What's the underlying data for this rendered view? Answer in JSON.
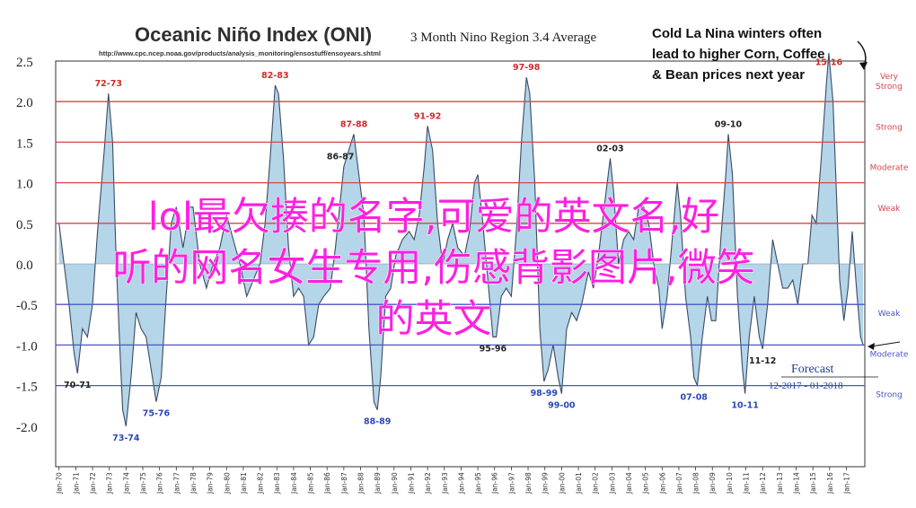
{
  "chart_data": {
    "type": "area",
    "title": "Oceanic Niño Index (ONI)",
    "subtitle": "3 Month Nino Region 3.4 Average",
    "source_url": "http://www.cpc.ncep.noaa.gov/products/analysis_monitoring/ensostuff/ensoyears.shtml",
    "xlabel": "",
    "ylabel": "",
    "ylim": [
      -2.5,
      2.5
    ],
    "y_tick_labels": [
      "2.5",
      "2.0",
      "1.5",
      "1.0",
      "0.5",
      "0.0",
      "-0.5",
      "-1.0",
      "-1.5",
      "-2.0"
    ],
    "y_ticks": [
      2.5,
      2.0,
      1.5,
      1.0,
      0.5,
      0.0,
      -0.5,
      -1.0,
      -1.5,
      -2.0
    ],
    "x_tick_labels": [
      "Jan-70",
      "Jan-71",
      "Jan-72",
      "Jan-73",
      "Jan-74",
      "Jan-75",
      "Jan-76",
      "Jan-77",
      "Jan-78",
      "Jan-79",
      "Jan-80",
      "Jan-81",
      "Jan-82",
      "Jan-83",
      "Jan-84",
      "Jan-85",
      "Jan-86",
      "Jan-87",
      "Jan-88",
      "Jan-89",
      "Jan-90",
      "Jan-91",
      "Jan-92",
      "Jan-93",
      "Jan-94",
      "Jan-95",
      "Jan-96",
      "Jan-97",
      "Jan-98",
      "Jan-99",
      "Jan-00",
      "Jan-01",
      "Jan-02",
      "Jan-03",
      "Jan-04",
      "Jan-05",
      "Jan-06",
      "Jan-07",
      "Jan-08",
      "Jan-09",
      "Jan-10",
      "Jan-11",
      "Jan-12",
      "Jan-13",
      "Jan-14",
      "Jan-15",
      "Jan-16",
      "Jan-17"
    ],
    "x_range": [
      1969.8,
      2018.1
    ],
    "thresholds": [
      {
        "label": "Very Strong",
        "value": 2.0,
        "color": "#d9434b"
      },
      {
        "label": "Strong",
        "value": 1.5,
        "color": "#d9434b"
      },
      {
        "label": "Moderate",
        "value": 1.0,
        "color": "#d9434b"
      },
      {
        "label": "Weak",
        "value": 0.5,
        "color": "#d9434b"
      },
      {
        "label": "Weak",
        "value": -0.5,
        "color": "#4a55c8"
      },
      {
        "label": "Moderate",
        "value": -1.0,
        "color": "#4a55c8"
      },
      {
        "label": "Strong",
        "value": -1.5,
        "color": "#4a55c8"
      }
    ],
    "series": [
      {
        "fill_color": "#b5d5e8",
        "line_color": "#3a4a66",
        "points": [
          [
            1970.0,
            0.5
          ],
          [
            1970.3,
            0.0
          ],
          [
            1970.6,
            -0.5
          ],
          [
            1970.9,
            -1.1
          ],
          [
            1971.1,
            -1.35
          ],
          [
            1971.4,
            -0.8
          ],
          [
            1971.7,
            -0.9
          ],
          [
            1972.0,
            -0.5
          ],
          [
            1972.3,
            0.4
          ],
          [
            1972.7,
            1.4
          ],
          [
            1972.95,
            2.1
          ],
          [
            1973.2,
            1.5
          ],
          [
            1973.4,
            0.1
          ],
          [
            1973.6,
            -0.9
          ],
          [
            1973.8,
            -1.8
          ],
          [
            1974.0,
            -2.0
          ],
          [
            1974.3,
            -1.4
          ],
          [
            1974.6,
            -0.6
          ],
          [
            1974.9,
            -0.8
          ],
          [
            1975.2,
            -0.9
          ],
          [
            1975.5,
            -1.3
          ],
          [
            1975.8,
            -1.7
          ],
          [
            1976.1,
            -1.4
          ],
          [
            1976.4,
            -0.4
          ],
          [
            1976.7,
            0.5
          ],
          [
            1977.0,
            0.7
          ],
          [
            1977.4,
            0.2
          ],
          [
            1977.8,
            0.7
          ],
          [
            1978.0,
            0.7
          ],
          [
            1978.4,
            0.0
          ],
          [
            1978.8,
            -0.3
          ],
          [
            1979.2,
            0.0
          ],
          [
            1979.6,
            0.2
          ],
          [
            1980.0,
            0.6
          ],
          [
            1980.4,
            0.3
          ],
          [
            1980.8,
            0.0
          ],
          [
            1981.2,
            -0.4
          ],
          [
            1981.6,
            -0.2
          ],
          [
            1982.0,
            0.0
          ],
          [
            1982.3,
            0.5
          ],
          [
            1982.6,
            1.3
          ],
          [
            1982.9,
            2.2
          ],
          [
            1983.1,
            2.1
          ],
          [
            1983.4,
            1.3
          ],
          [
            1983.7,
            0.2
          ],
          [
            1984.0,
            -0.4
          ],
          [
            1984.3,
            -0.3
          ],
          [
            1984.6,
            -0.4
          ],
          [
            1984.9,
            -1.0
          ],
          [
            1985.2,
            -0.9
          ],
          [
            1985.5,
            -0.5
          ],
          [
            1985.8,
            -0.4
          ],
          [
            1986.2,
            -0.3
          ],
          [
            1986.5,
            0.2
          ],
          [
            1986.8,
            0.8
          ],
          [
            1987.0,
            1.2
          ],
          [
            1987.3,
            1.4
          ],
          [
            1987.6,
            1.6
          ],
          [
            1987.9,
            1.1
          ],
          [
            1988.2,
            0.6
          ],
          [
            1988.5,
            -0.8
          ],
          [
            1988.8,
            -1.7
          ],
          [
            1989.0,
            -1.8
          ],
          [
            1989.2,
            -1.4
          ],
          [
            1989.5,
            -0.4
          ],
          [
            1989.8,
            -0.3
          ],
          [
            1990.1,
            0.1
          ],
          [
            1990.5,
            0.3
          ],
          [
            1990.9,
            0.4
          ],
          [
            1991.2,
            0.3
          ],
          [
            1991.5,
            0.6
          ],
          [
            1991.8,
            1.2
          ],
          [
            1992.0,
            1.7
          ],
          [
            1992.3,
            1.4
          ],
          [
            1992.6,
            0.5
          ],
          [
            1992.9,
            0.0
          ],
          [
            1993.2,
            0.3
          ],
          [
            1993.5,
            0.5
          ],
          [
            1993.8,
            0.2
          ],
          [
            1994.2,
            0.1
          ],
          [
            1994.5,
            0.4
          ],
          [
            1994.8,
            1.0
          ],
          [
            1995.0,
            1.1
          ],
          [
            1995.3,
            0.5
          ],
          [
            1995.6,
            -0.2
          ],
          [
            1995.9,
            -0.9
          ],
          [
            1996.1,
            -0.9
          ],
          [
            1996.4,
            -0.4
          ],
          [
            1996.7,
            -0.3
          ],
          [
            1997.0,
            -0.4
          ],
          [
            1997.3,
            0.4
          ],
          [
            1997.6,
            1.5
          ],
          [
            1997.9,
            2.3
          ],
          [
            1998.1,
            2.1
          ],
          [
            1998.4,
            1.0
          ],
          [
            1998.7,
            -0.8
          ],
          [
            1998.95,
            -1.45
          ],
          [
            1999.2,
            -1.3
          ],
          [
            1999.5,
            -1.0
          ],
          [
            1999.8,
            -1.4
          ],
          [
            2000.0,
            -1.6
          ],
          [
            2000.3,
            -0.8
          ],
          [
            2000.6,
            -0.6
          ],
          [
            2000.9,
            -0.7
          ],
          [
            2001.2,
            -0.5
          ],
          [
            2001.6,
            -0.1
          ],
          [
            2001.9,
            -0.3
          ],
          [
            2002.2,
            0.1
          ],
          [
            2002.6,
            0.8
          ],
          [
            2002.9,
            1.3
          ],
          [
            2003.1,
            0.9
          ],
          [
            2003.4,
            0.0
          ],
          [
            2003.7,
            0.3
          ],
          [
            2004.0,
            0.4
          ],
          [
            2004.3,
            0.3
          ],
          [
            2004.6,
            0.7
          ],
          [
            2004.9,
            0.7
          ],
          [
            2005.2,
            0.5
          ],
          [
            2005.5,
            0.0
          ],
          [
            2005.8,
            -0.3
          ],
          [
            2006.0,
            -0.8
          ],
          [
            2006.3,
            -0.4
          ],
          [
            2006.6,
            0.3
          ],
          [
            2006.9,
            1.0
          ],
          [
            2007.1,
            0.6
          ],
          [
            2007.4,
            -0.4
          ],
          [
            2007.7,
            -0.9
          ],
          [
            2007.9,
            -1.4
          ],
          [
            2008.1,
            -1.5
          ],
          [
            2008.4,
            -0.9
          ],
          [
            2008.7,
            -0.4
          ],
          [
            2008.95,
            -0.7
          ],
          [
            2009.2,
            -0.7
          ],
          [
            2009.5,
            0.3
          ],
          [
            2009.8,
            1.1
          ],
          [
            2009.95,
            1.6
          ],
          [
            2010.2,
            1.1
          ],
          [
            2010.5,
            -0.4
          ],
          [
            2010.8,
            -1.3
          ],
          [
            2010.95,
            -1.6
          ],
          [
            2011.2,
            -0.9
          ],
          [
            2011.5,
            -0.4
          ],
          [
            2011.8,
            -0.9
          ],
          [
            2012.0,
            -1.05
          ],
          [
            2012.3,
            -0.5
          ],
          [
            2012.6,
            0.3
          ],
          [
            2012.9,
            0.0
          ],
          [
            2013.2,
            -0.3
          ],
          [
            2013.5,
            -0.3
          ],
          [
            2013.8,
            -0.2
          ],
          [
            2014.1,
            -0.5
          ],
          [
            2014.4,
            0.0
          ],
          [
            2014.7,
            0.0
          ],
          [
            2014.95,
            0.6
          ],
          [
            2015.2,
            0.5
          ],
          [
            2015.5,
            1.3
          ],
          [
            2015.8,
            2.2
          ],
          [
            2015.95,
            2.6
          ],
          [
            2016.2,
            2.0
          ],
          [
            2016.4,
            0.9
          ],
          [
            2016.6,
            -0.2
          ],
          [
            2016.85,
            -0.7
          ],
          [
            2017.1,
            -0.3
          ],
          [
            2017.35,
            0.4
          ],
          [
            2017.6,
            -0.3
          ],
          [
            2017.85,
            -0.9
          ],
          [
            2018.0,
            -1.0
          ]
        ]
      }
    ],
    "event_labels": [
      {
        "text": "72-73",
        "x": 1972.95,
        "y": 2.1,
        "color": "#d12b2b"
      },
      {
        "text": "82-83",
        "x": 1982.9,
        "y": 2.2,
        "color": "#d12b2b"
      },
      {
        "text": "87-88",
        "x": 1987.6,
        "y": 1.6,
        "color": "#d12b2b"
      },
      {
        "text": "91-92",
        "x": 1992.0,
        "y": 1.7,
        "color": "#d12b2b"
      },
      {
        "text": "97-98",
        "x": 1997.9,
        "y": 2.3,
        "color": "#d12b2b"
      },
      {
        "text": "15-16",
        "x": 2015.95,
        "y": 2.6,
        "color": "#d12b2b"
      },
      {
        "text": "86-87",
        "x": 1986.8,
        "y": 1.2,
        "color": "#222222"
      },
      {
        "text": "02-03",
        "x": 2002.9,
        "y": 1.3,
        "color": "#222222"
      },
      {
        "text": "09-10",
        "x": 2009.95,
        "y": 1.6,
        "color": "#222222"
      },
      {
        "text": "70-71",
        "x": 1971.1,
        "y": -1.35,
        "color": "#222222"
      },
      {
        "text": "73-74",
        "x": 1974.0,
        "y": -2.0,
        "color": "#2a49b8"
      },
      {
        "text": "75-76",
        "x": 1975.8,
        "y": -1.7,
        "color": "#2a49b8"
      },
      {
        "text": "88-89",
        "x": 1989.0,
        "y": -1.8,
        "color": "#2a49b8"
      },
      {
        "text": "95-96",
        "x": 1995.9,
        "y": -0.9,
        "color": "#222222"
      },
      {
        "text": "98-99",
        "x": 1998.95,
        "y": -1.45,
        "color": "#2a49b8"
      },
      {
        "text": "99-00",
        "x": 2000.0,
        "y": -1.6,
        "color": "#2a49b8"
      },
      {
        "text": "07-08",
        "x": 2007.9,
        "y": -1.5,
        "color": "#2a49b8"
      },
      {
        "text": "10-11",
        "x": 2010.95,
        "y": -1.6,
        "color": "#2a49b8"
      },
      {
        "text": "11-12",
        "x": 2012.0,
        "y": -1.05,
        "color": "#222222"
      }
    ],
    "callout": [
      "Cold La Nina winters often",
      "lead to higher Corn, Coffee",
      "& Bean prices next year"
    ],
    "forecast": {
      "label": "Forecast",
      "dates": "12-2017 - 01-2018"
    },
    "grid": false,
    "legend": "none"
  },
  "overlay": {
    "lines": [
      "lol最欠揍的名字,可爱的英文名,好",
      "听的网名女生专用,伤感背影图片,微笑",
      "的英文"
    ],
    "color": "#ff1fe0"
  }
}
